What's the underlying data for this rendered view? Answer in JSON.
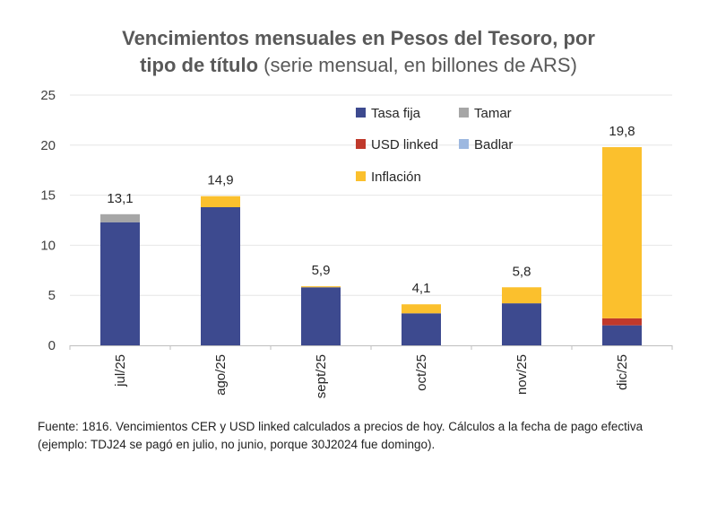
{
  "chart_data": {
    "type": "bar",
    "stacked": true,
    "title_bold_line1": "Vencimientos mensuales en Pesos del Tesoro, por",
    "title_bold_line2": "tipo de título",
    "title_normal": "(serie mensual, en billones de ARS)",
    "categories": [
      "jul/25",
      "ago/25",
      "sept/25",
      "oct/25",
      "nov/25",
      "dic/25"
    ],
    "series": [
      {
        "name": "Tasa fija",
        "color": "#3d4a8f",
        "values": [
          12.3,
          13.8,
          5.8,
          3.2,
          4.2,
          2.0
        ]
      },
      {
        "name": "Tamar",
        "color": "#a6a6a6",
        "values": [
          0.8,
          0,
          0,
          0,
          0,
          0
        ]
      },
      {
        "name": "USD linked",
        "color": "#c0392b",
        "values": [
          0,
          0,
          0,
          0,
          0,
          0.7
        ]
      },
      {
        "name": "Badlar",
        "color": "#9db8e0",
        "values": [
          0,
          0,
          0,
          0,
          0,
          0
        ]
      },
      {
        "name": "Inflación",
        "color": "#fbc02d",
        "values": [
          0,
          1.1,
          0.1,
          0.9,
          1.6,
          17.1
        ]
      }
    ],
    "totals": [
      "13,1",
      "14,9",
      "5,9",
      "4,1",
      "5,8",
      "19,8"
    ],
    "total_values": [
      13.1,
      14.9,
      5.9,
      4.1,
      5.8,
      19.8
    ],
    "ylim": [
      0,
      25
    ],
    "yticks": [
      "0",
      "5",
      "10",
      "15",
      "20",
      "25"
    ],
    "legend_position": "top-right",
    "grid": true
  },
  "source_note": "Fuente: 1816. Vencimientos CER y USD linked calculados a precios de hoy. Cálculos a la fecha de pago efectiva (ejemplo: TDJ24 se pagó en julio, no junio, porque 30J2024 fue domingo)."
}
